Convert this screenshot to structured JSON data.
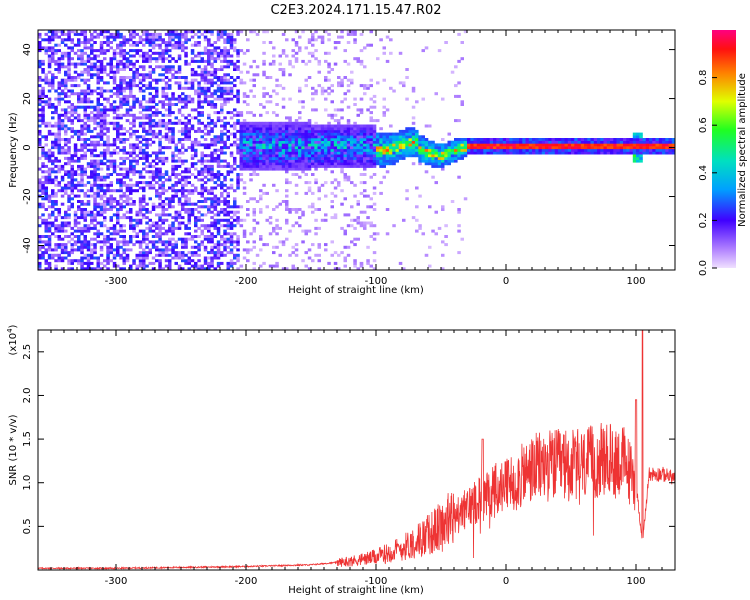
{
  "title": "C2E3.2024.171.15.47.R02",
  "chart_data": [
    {
      "type": "heatmap",
      "xlabel": "Height of straight line (km)",
      "ylabel": "Frequency (Hz)",
      "xlim": [
        -360,
        130
      ],
      "ylim": [
        -50,
        48
      ],
      "xticks": [
        -300,
        -200,
        -100,
        0,
        100
      ],
      "yticks": [
        -40,
        -20,
        0,
        20,
        40
      ],
      "colorbar": {
        "label": "Normalized spectral amplitude",
        "range": [
          0.0,
          1.0
        ],
        "ticks": [
          0.0,
          0.2,
          0.4,
          0.6,
          0.8
        ],
        "tick_labels": [
          "0.0",
          "0.2",
          "0.4",
          "0.6",
          "0.8"
        ]
      },
      "features": [
        {
          "x_range": [
            -360,
            -205
          ],
          "freq_range": [
            -50,
            48
          ],
          "amplitude": 0.2
        },
        {
          "x_range": [
            -205,
            -30
          ],
          "freq_range": [
            -10,
            10
          ],
          "amplitude": 0.5
        },
        {
          "x_range": [
            -30,
            130
          ],
          "freq_range": [
            -1.5,
            1.5
          ],
          "amplitude": 0.95
        }
      ]
    },
    {
      "type": "line",
      "xlabel": "Height of straight line (km)",
      "ylabel": "SNR (10 * v/v)",
      "y_multiplier": "(x10",
      "y_multiplier_exp": "4",
      "y_multiplier_close": ")",
      "xlim": [
        -360,
        130
      ],
      "ylim": [
        0,
        27500
      ],
      "xticks": [
        -300,
        -200,
        -100,
        0,
        100
      ],
      "yticks": [
        5000,
        10000,
        15000,
        20000,
        25000
      ],
      "ytick_labels": [
        "0.5",
        "1.0",
        "1.5",
        "2.0",
        "2.5"
      ],
      "color": "#ee3333",
      "series": [
        {
          "x": [
            -360,
            -300,
            -250,
            -200,
            -150,
            -120,
            -100,
            -80,
            -60,
            -40,
            -30,
            -20,
            -10,
            0,
            10,
            20,
            30,
            40,
            50,
            60,
            70,
            80,
            90,
            100,
            105,
            110,
            120,
            130
          ],
          "values": [
            200,
            200,
            300,
            400,
            600,
            1000,
            1500,
            2500,
            4000,
            6000,
            7000,
            8500,
            9000,
            9500,
            10500,
            11500,
            12000,
            12000,
            12000,
            12000,
            12500,
            12500,
            12500,
            10000,
            3000,
            11000,
            11000,
            10500
          ]
        }
      ]
    }
  ]
}
